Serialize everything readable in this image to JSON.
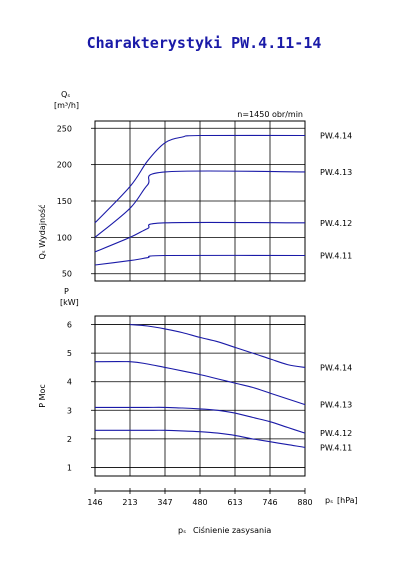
{
  "chart_data": {
    "title": "Charakterystyki PW.4.11-14",
    "x_axis": {
      "ticks": [
        146,
        213,
        347,
        480,
        613,
        746,
        880
      ],
      "unit": "[hPa]",
      "unit_symbol": "pₛ",
      "label_symbol": "pₛ",
      "label_text": "Ciśnienie zasysania",
      "xlim": [
        146,
        880
      ]
    },
    "panels": [
      {
        "type": "line",
        "name": "flow",
        "ylabel": "Qₛ Wydajność",
        "unit_symbol": "Qₛ",
        "unit": "[m³/h]",
        "ylim": [
          40,
          260
        ],
        "yticks": [
          50,
          100,
          150,
          200,
          250
        ],
        "annotation": "n=1450 obr/min",
        "grid": true,
        "series": [
          {
            "name": "PW.4.14",
            "x": [
              146,
              213,
              280,
              347,
              413,
              480,
              880
            ],
            "values": [
              120,
              170,
              205,
              230,
              238,
              240,
              240
            ]
          },
          {
            "name": "PW.4.13",
            "x": [
              146,
              213,
              280,
              347,
              880
            ],
            "values": [
              100,
              140,
              172,
              190,
              190
            ]
          },
          {
            "name": "PW.4.12",
            "x": [
              146,
              213,
              280,
              347,
              880
            ],
            "values": [
              80,
              100,
              112,
              120,
              120
            ]
          },
          {
            "name": "PW.4.11",
            "x": [
              146,
              213,
              280,
              347,
              880
            ],
            "values": [
              62,
              68,
              72,
              75,
              75
            ]
          }
        ]
      },
      {
        "type": "line",
        "name": "power",
        "ylabel": "P  Moc",
        "unit_symbol": "P",
        "unit": "[kW]",
        "ylim": [
          0.7,
          6.3
        ],
        "yticks": [
          1,
          2,
          3,
          4,
          5,
          6
        ],
        "grid": true,
        "series": [
          {
            "name": "PW.4.14",
            "x": [
              213,
              280,
              347,
              413,
              480,
              547,
              613,
              680,
              746,
              813,
              880
            ],
            "values": [
              6.0,
              5.95,
              5.85,
              5.72,
              5.55,
              5.4,
              5.2,
              5.0,
              4.8,
              4.6,
              4.5
            ]
          },
          {
            "name": "PW.4.13",
            "x": [
              146,
              213,
              280,
              347,
              413,
              480,
              547,
              613,
              680,
              746,
              813,
              880
            ],
            "values": [
              4.7,
              4.7,
              4.62,
              4.5,
              4.38,
              4.25,
              4.1,
              3.95,
              3.8,
              3.6,
              3.4,
              3.2
            ]
          },
          {
            "name": "PW.4.12",
            "x": [
              146,
              213,
              280,
              347,
              413,
              480,
              547,
              613,
              680,
              746,
              813,
              880
            ],
            "values": [
              3.1,
              3.1,
              3.1,
              3.1,
              3.08,
              3.05,
              3.0,
              2.9,
              2.75,
              2.6,
              2.4,
              2.2
            ]
          },
          {
            "name": "PW.4.11",
            "x": [
              146,
              213,
              280,
              347,
              413,
              480,
              547,
              613,
              680,
              746,
              813,
              880
            ],
            "values": [
              2.3,
              2.3,
              2.3,
              2.3,
              2.28,
              2.25,
              2.2,
              2.12,
              2.0,
              1.9,
              1.8,
              1.7
            ]
          }
        ]
      }
    ]
  }
}
